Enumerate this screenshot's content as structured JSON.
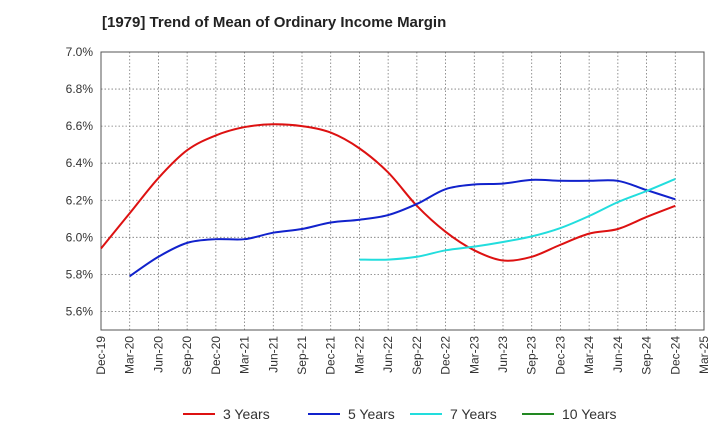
{
  "chart_data": {
    "type": "line",
    "title": "[1979]  Trend of Mean of Ordinary Income Margin",
    "xlabel": "",
    "ylabel": "",
    "ylim": [
      5.5,
      7.0
    ],
    "yticks": [
      5.6,
      5.8,
      6.0,
      6.2,
      6.4,
      6.6,
      6.8,
      7.0
    ],
    "ytick_labels": [
      "5.6%",
      "5.8%",
      "6.0%",
      "6.2%",
      "6.4%",
      "6.6%",
      "6.8%",
      "7.0%"
    ],
    "x": [
      "Dec-19",
      "Mar-20",
      "Jun-20",
      "Sep-20",
      "Dec-20",
      "Mar-21",
      "Jun-21",
      "Sep-21",
      "Dec-21",
      "Mar-22",
      "Jun-22",
      "Sep-22",
      "Dec-22",
      "Mar-23",
      "Jun-23",
      "Sep-23",
      "Dec-23",
      "Mar-24",
      "Jun-24",
      "Sep-24",
      "Dec-24",
      "Mar-25"
    ],
    "grid": true,
    "legend_position": "bottom",
    "series": [
      {
        "name": "3 Years",
        "color": "#dd1111",
        "values": [
          5.94,
          6.13,
          6.32,
          6.47,
          6.55,
          6.595,
          6.61,
          6.6,
          6.565,
          6.48,
          6.35,
          6.17,
          6.03,
          5.93,
          5.875,
          5.895,
          5.96,
          6.02,
          6.045,
          6.11,
          6.17,
          null
        ]
      },
      {
        "name": "5 Years",
        "color": "#1122cc",
        "values": [
          null,
          5.79,
          5.895,
          5.97,
          5.99,
          5.99,
          6.025,
          6.045,
          6.08,
          6.095,
          6.12,
          6.18,
          6.26,
          6.285,
          6.29,
          6.31,
          6.305,
          6.305,
          6.305,
          6.255,
          6.205,
          null
        ]
      },
      {
        "name": "7 Years",
        "color": "#22dddd",
        "values": [
          null,
          null,
          null,
          null,
          null,
          null,
          null,
          null,
          null,
          5.88,
          5.88,
          5.895,
          5.93,
          5.95,
          5.975,
          6.005,
          6.05,
          6.115,
          6.19,
          6.25,
          6.315,
          null
        ]
      },
      {
        "name": "10 Years",
        "color": "#228822",
        "values": [
          null,
          null,
          null,
          null,
          null,
          null,
          null,
          null,
          null,
          null,
          null,
          null,
          null,
          null,
          null,
          null,
          null,
          null,
          null,
          null,
          null,
          null
        ]
      }
    ]
  }
}
